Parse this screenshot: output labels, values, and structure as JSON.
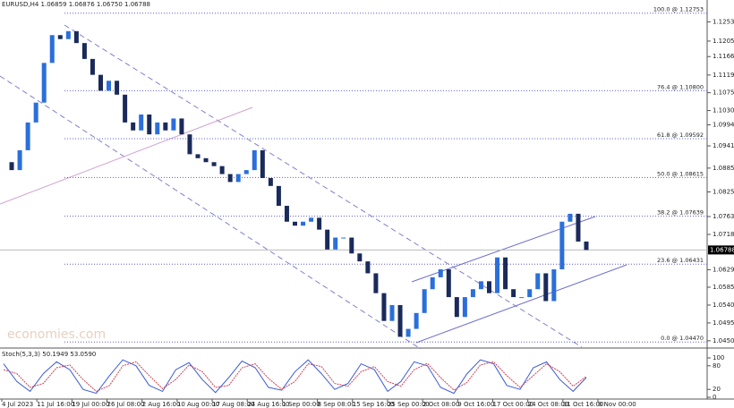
{
  "chart_data": {
    "type": "candlestick",
    "title": "EURUSD,H4 1.06859 1.06876 1.06750 1.06788",
    "watermark": "economies.com",
    "closes": [
      1.09,
      1.088,
      1.093,
      1.1,
      1.105,
      1.115,
      1.122,
      1.121,
      1.123,
      1.12,
      1.116,
      1.112,
      1.108,
      1.1105,
      1.107,
      1.1,
      1.098,
      1.102,
      1.097,
      1.1,
      1.098,
      1.101,
      1.097,
      1.092,
      1.091,
      1.09,
      1.089,
      1.087,
      1.085,
      1.087,
      1.088,
      1.093,
      1.086,
      1.084,
      1.079,
      1.075,
      1.074,
      1.075,
      1.076,
      1.073,
      1.068,
      1.071,
      1.071,
      1.067,
      1.065,
      1.062,
      1.057,
      1.05,
      1.054,
      1.046,
      1.048,
      1.052,
      1.058,
      1.061,
      1.063,
      1.056,
      1.051,
      1.056,
      1.058,
      1.06,
      1.057,
      1.066,
      1.058,
      1.056,
      1.056,
      1.058,
      1.062,
      1.055,
      1.063,
      1.075,
      1.077,
      1.07,
      1.06788
    ],
    "up_color": "#2a6fdb",
    "down_color": "#1a2a5a",
    "ylim": [
      1.04317,
      1.13085
    ],
    "yticks": [
      {
        "value": 1.12535,
        "label": "1.12535"
      },
      {
        "value": 1.1205,
        "label": "1.12050"
      },
      {
        "value": 1.1166,
        "label": "1.11660"
      },
      {
        "value": 1.11195,
        "label": "1.11195"
      },
      {
        "value": 1.1075,
        "label": "1.10750"
      },
      {
        "value": 1.103,
        "label": "1.10300"
      },
      {
        "value": 1.0994,
        "label": "1.09940"
      },
      {
        "value": 1.0941,
        "label": "1.09410"
      },
      {
        "value": 1.0885,
        "label": "1.08850"
      },
      {
        "value": 1.0825,
        "label": "1.08250"
      },
      {
        "value": 1.0763,
        "label": "1.07630"
      },
      {
        "value": 1.0718,
        "label": "1.07180"
      },
      {
        "value": 1.0629,
        "label": "1.06290"
      },
      {
        "value": 1.0585,
        "label": "1.05850"
      },
      {
        "value": 1.054,
        "label": "1.05400"
      },
      {
        "value": 1.0495,
        "label": "1.04950"
      },
      {
        "value": 1.045,
        "label": "1.04500"
      }
    ],
    "current_price": {
      "value": 1.06788,
      "label": "1.06788"
    },
    "fib_levels": [
      {
        "value": 1.12753,
        "label": "100.0 @ 1.12753"
      },
      {
        "value": 1.108,
        "label": "76.4 @ 1.10800"
      },
      {
        "value": 1.09592,
        "label": "61.8 @ 1.09592"
      },
      {
        "value": 1.08615,
        "label": "50.0 @ 1.08615"
      },
      {
        "value": 1.07639,
        "label": "38.2 @ 1.07639"
      },
      {
        "value": 1.06431,
        "label": "23.6 @ 1.06431"
      },
      {
        "value": 1.0447,
        "label": "0.0 @ 1.04470"
      }
    ],
    "categories": [
      "4 Jul 2023",
      "11 Jul 16:00",
      "19 Jul 00:00",
      "26 Jul 08:00",
      "2 Aug 16:00",
      "10 Aug 00:00",
      "17 Aug 08:00",
      "24 Aug 16:00",
      "1 Sep 00:00",
      "8 Sep 08:00",
      "15 Sep 16:00",
      "25 Sep 00:00",
      "2 Oct 08:00",
      "9 Oct 16:00",
      "17 Oct 00:00",
      "24 Oct 08:00",
      "31 Oct 16:00",
      "8 Nov 00:00"
    ],
    "stoch": {
      "label": "Stoch(5,3,3) 50.1949 53.0590",
      "ylim": [
        0,
        100
      ],
      "yticks": [
        100,
        80,
        20,
        0
      ],
      "series": [
        {
          "color": "#3b5bd6",
          "values": [
            85,
            40,
            15,
            60,
            90,
            70,
            20,
            10,
            55,
            95,
            80,
            30,
            15,
            70,
            88,
            45,
            12,
            50,
            92,
            75,
            25,
            18,
            65,
            95,
            60,
            20,
            35,
            85,
            70,
            15,
            40,
            90,
            80,
            25,
            10,
            60,
            95,
            85,
            30,
            20,
            75,
            90,
            45,
            15,
            50
          ]
        },
        {
          "color": "#d04050",
          "values": [
            70,
            60,
            25,
            35,
            75,
            82,
            45,
            15,
            30,
            80,
            90,
            55,
            22,
            45,
            82,
            65,
            25,
            30,
            75,
            85,
            48,
            20,
            40,
            85,
            78,
            35,
            28,
            65,
            78,
            40,
            28,
            70,
            86,
            50,
            18,
            38,
            82,
            90,
            55,
            25,
            55,
            85,
            65,
            28,
            53
          ]
        }
      ]
    }
  }
}
